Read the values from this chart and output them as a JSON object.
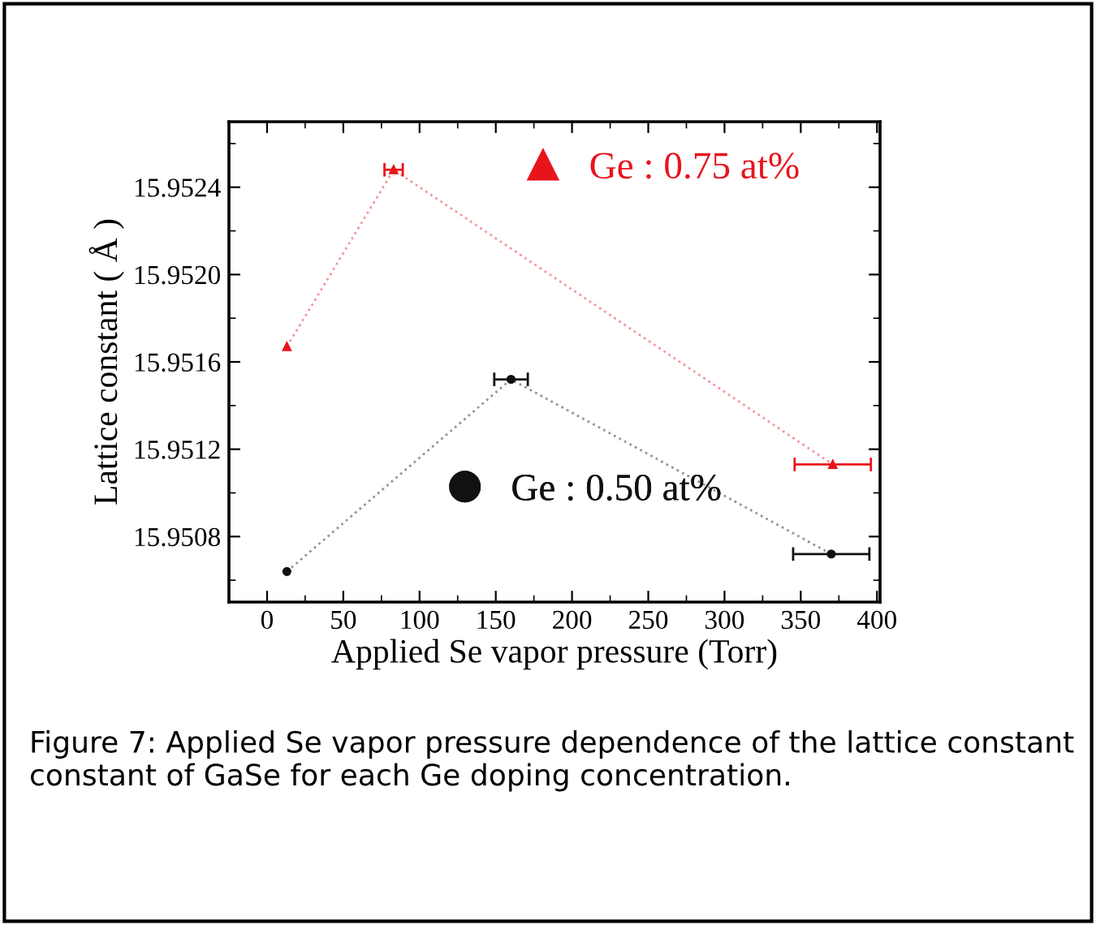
{
  "chart_data": {
    "type": "line",
    "xlabel": "Applied Se vapor pressure (Torr)",
    "ylabel": "Lattice constant ( Å )",
    "series": [
      {
        "name": "Ge : 0.75 at%",
        "color": "#e8141c",
        "marker": "triangle",
        "x": [
          13,
          83,
          371
        ],
        "values": [
          15.95167,
          15.95248,
          15.95113
        ],
        "xerrors": [
          null,
          6,
          25
        ]
      },
      {
        "name": "Ge : 0.50 at%",
        "color": "#111111",
        "marker": "circle",
        "x": [
          13,
          160,
          370
        ],
        "values": [
          15.95064,
          15.95152,
          15.95072
        ],
        "xerrors": [
          null,
          11,
          25
        ]
      }
    ],
    "line_style": "dotted",
    "xlim": [
      -25,
      402
    ],
    "xticks": [
      0,
      50,
      100,
      150,
      200,
      250,
      300,
      350,
      400
    ],
    "ylim": [
      15.9505,
      15.9527
    ],
    "yticks": [
      15.9508,
      15.9512,
      15.9516,
      {
        "value": 15.952,
        "label": "15.9520"
      },
      15.9524
    ],
    "grid": false,
    "legend": "right",
    "annotations": [
      "Figure 7: Applied Se vapor pressure dependence of the lattice constant constant of GaSe for each Ge doping concentration."
    ]
  }
}
